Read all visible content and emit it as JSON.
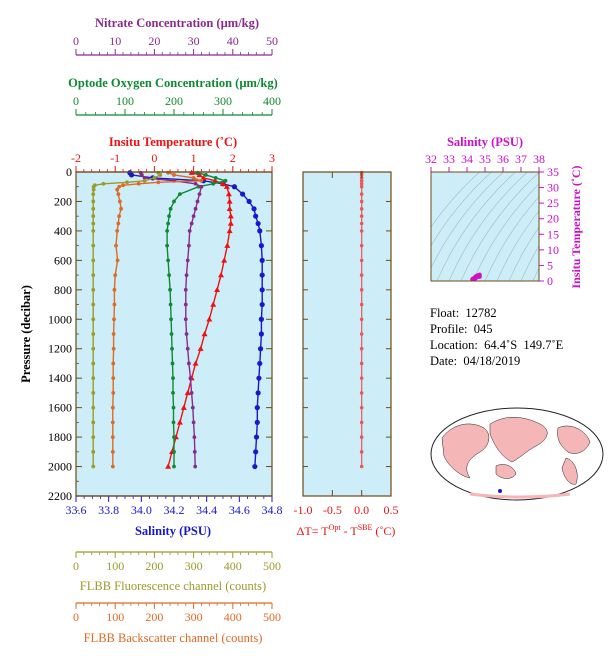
{
  "colors": {
    "nitrate": "#8a2a8f",
    "oxygen": "#0f8a32",
    "temperature": "#ee1111",
    "salinity": "#1818cc",
    "fluorescence": "#9b9b2a",
    "backscatter": "#de6a23",
    "delta_t": "#ee5555",
    "ts_axis": "#cc11cc",
    "plot_bg": "#cdeef8",
    "frame": "#6b4b18"
  },
  "info": {
    "float": "Float:  12782",
    "profile": "Profile:  045",
    "location": "Location:  64.4˚S  149.7˚E",
    "date": "Date:  04/18/2019"
  },
  "chart_data": [
    {
      "type": "line",
      "name": "main-profile",
      "ylabel": "Pressure (decibar)",
      "ylim": [
        2200,
        0
      ],
      "yticks": [
        0,
        200,
        400,
        600,
        800,
        1000,
        1200,
        1400,
        1600,
        1800,
        2000,
        2200
      ],
      "axes": {
        "nitrate": {
          "label": "Nitrate Concentration (µm/kg)",
          "range": [
            0,
            50
          ],
          "ticks": [
            0,
            10,
            20,
            30,
            40,
            50
          ]
        },
        "oxygen": {
          "label": "Optode Oxygen Concentration (µm/kg)",
          "range": [
            0,
            400
          ],
          "ticks": [
            0,
            100,
            200,
            300,
            400
          ]
        },
        "temperature": {
          "label": "Insitu Temperature (˚C)",
          "range": [
            -2,
            3
          ],
          "ticks": [
            -2,
            -1,
            0,
            1,
            2,
            3
          ]
        },
        "salinity": {
          "label": "Salinity (PSU)",
          "range": [
            33.6,
            34.8
          ],
          "ticks": [
            "33.6",
            "33.8",
            "34.0",
            "34.2",
            "34.4",
            "34.6",
            "34.8"
          ]
        },
        "fluorescence": {
          "label": "FLBB Fluorescence channel (counts)",
          "range": [
            0,
            500
          ],
          "ticks": [
            0,
            100,
            200,
            300,
            400,
            500
          ]
        },
        "backscatter": {
          "label": "FLBB Backscatter channel (counts)",
          "range": [
            0,
            500
          ],
          "ticks": [
            0,
            100,
            200,
            300,
            400,
            500
          ]
        }
      },
      "series": [
        {
          "key": "salinity",
          "marker": "circle",
          "p": [
            5,
            20,
            40,
            60,
            80,
            100,
            150,
            200,
            250,
            300,
            350,
            400,
            500,
            600,
            700,
            800,
            900,
            1000,
            1100,
            1200,
            1300,
            1400,
            1500,
            1600,
            1700,
            1800,
            1900,
            2000
          ],
          "x": [
            33.93,
            33.94,
            34.07,
            34.38,
            34.5,
            34.57,
            34.62,
            34.66,
            34.69,
            34.7,
            34.715,
            34.725,
            34.735,
            34.74,
            34.74,
            34.74,
            34.74,
            34.735,
            34.735,
            34.73,
            34.725,
            34.72,
            34.715,
            34.71,
            34.71,
            34.705,
            34.7,
            34.695
          ]
        },
        {
          "key": "temperature",
          "marker": "triangle",
          "p": [
            5,
            20,
            40,
            60,
            80,
            100,
            150,
            200,
            250,
            300,
            350,
            400,
            500,
            600,
            700,
            800,
            900,
            1000,
            1100,
            1200,
            1300,
            1400,
            1500,
            1600,
            1700,
            1800,
            1900,
            2000
          ],
          "x": [
            0.95,
            1.15,
            1.25,
            1.55,
            1.75,
            1.85,
            1.9,
            1.92,
            1.92,
            1.95,
            1.95,
            1.92,
            1.86,
            1.78,
            1.7,
            1.6,
            1.5,
            1.4,
            1.28,
            1.18,
            1.05,
            0.95,
            0.85,
            0.75,
            0.65,
            0.55,
            0.45,
            0.35
          ]
        },
        {
          "key": "oxygen",
          "marker": "circle",
          "p": [
            5,
            20,
            40,
            60,
            80,
            100,
            150,
            200,
            250,
            300,
            350,
            400,
            500,
            600,
            700,
            800,
            900,
            1000,
            1100,
            1200,
            1300,
            1400,
            1500,
            1600,
            1700,
            1800,
            1900,
            2000
          ],
          "x": [
            248,
            265,
            285,
            305,
            280,
            250,
            212,
            200,
            193,
            190,
            188,
            186,
            186,
            188,
            190,
            192,
            193,
            194,
            195,
            196,
            197,
            198,
            198,
            199,
            199,
            200,
            200,
            200
          ]
        },
        {
          "key": "nitrate",
          "marker": "circle",
          "p": [
            5,
            20,
            40,
            60,
            80,
            100,
            150,
            200,
            250,
            300,
            350,
            400,
            500,
            600,
            700,
            800,
            900,
            1000,
            1100,
            1200,
            1300,
            1400,
            1500,
            1600,
            1700,
            1800,
            1900,
            2000
          ],
          "x": [
            16.5,
            16.8,
            17.5,
            25.0,
            30.5,
            32.0,
            31.5,
            31.0,
            30.5,
            30.0,
            29.5,
            29.0,
            28.8,
            28.5,
            28.2,
            28.0,
            28.0,
            28.0,
            28.2,
            28.5,
            28.8,
            29.2,
            29.5,
            29.8,
            30.0,
            30.2,
            30.3,
            30.4
          ]
        },
        {
          "key": "fluorescence",
          "marker": "circle",
          "p": [
            5,
            20,
            40,
            60,
            70,
            80,
            90,
            100,
            120,
            150,
            200,
            250,
            300,
            350,
            400,
            500,
            600,
            700,
            800,
            900,
            1000,
            1100,
            1200,
            1300,
            1400,
            1500,
            1600,
            1700,
            1800,
            1900,
            2000
          ],
          "x": [
            210,
            215,
            200,
            175,
            130,
            70,
            48,
            45,
            45,
            44,
            44,
            44,
            44,
            44,
            44,
            44,
            44,
            44,
            44,
            44,
            44,
            44,
            44,
            44,
            44,
            44,
            44,
            44,
            44,
            44,
            44
          ]
        },
        {
          "key": "backscatter",
          "marker": "circle",
          "p": [
            5,
            20,
            40,
            60,
            70,
            80,
            90,
            100,
            120,
            150,
            200,
            250,
            300,
            350,
            400,
            500,
            600,
            700,
            800,
            900,
            1000,
            1100,
            1200,
            1300,
            1400,
            1500,
            1600,
            1700,
            1800,
            1900,
            2000
          ],
          "x": [
            235,
            250,
            300,
            320,
            210,
            160,
            120,
            110,
            105,
            108,
            112,
            115,
            110,
            108,
            105,
            102,
            106,
            100,
            98,
            98,
            97,
            96,
            96,
            95,
            95,
            95,
            94,
            94,
            94,
            94,
            94
          ]
        }
      ]
    },
    {
      "type": "line",
      "name": "delta-t",
      "xlabel_prefix": "ΔT= T",
      "xlabel_sup1": "Opt",
      "xlabel_mid": " - T",
      "xlabel_sup2": "SBE",
      "xlabel_suffix": " (˚C)",
      "xlim": [
        -1.0,
        0.5
      ],
      "xticks": [
        "-1.0",
        "-0.5",
        "0.0",
        "0.5"
      ],
      "ylim": [
        2200,
        0
      ],
      "p": [
        5,
        20,
        40,
        60,
        80,
        100,
        150,
        200,
        250,
        300,
        350,
        400,
        500,
        600,
        700,
        800,
        900,
        1000,
        1100,
        1200,
        1300,
        1400,
        1500,
        1600,
        1700,
        1800,
        1900,
        2000
      ],
      "x": [
        0.0,
        0.0,
        0.0,
        0.0,
        0.0,
        0.0,
        0.0,
        0.0,
        0.0,
        0.0,
        0.0,
        0.0,
        0.0,
        0.0,
        0.0,
        0.0,
        0.0,
        0.0,
        0.0,
        0.0,
        0.0,
        0.0,
        0.0,
        0.0,
        0.0,
        0.0,
        0.0,
        0.0
      ]
    },
    {
      "type": "scatter",
      "name": "t-s-diagram",
      "title": "Salinity (PSU)",
      "ylabel": "Insitu Temperature (˚C)",
      "xlim": [
        32,
        38
      ],
      "ylim": [
        0,
        35
      ],
      "xticks": [
        32,
        33,
        34,
        35,
        36,
        37,
        38
      ],
      "yticks": [
        0,
        5,
        10,
        15,
        20,
        25,
        30,
        35
      ],
      "points": [
        [
          34.4,
          1.0
        ],
        [
          34.5,
          1.5
        ],
        [
          34.6,
          1.8
        ],
        [
          34.7,
          2.0
        ],
        [
          34.65,
          1.6
        ],
        [
          34.55,
          1.2
        ],
        [
          34.45,
          0.8
        ],
        [
          34.7,
          1.4
        ],
        [
          34.68,
          1.9
        ],
        [
          34.3,
          0.6
        ]
      ]
    }
  ]
}
